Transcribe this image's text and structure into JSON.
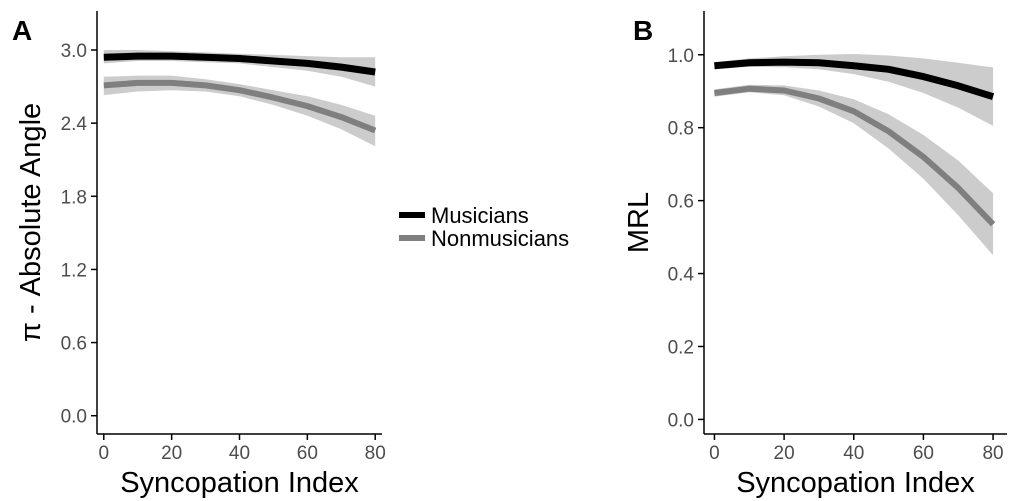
{
  "legend": {
    "placement": "center",
    "entries": [
      {
        "label": "Musicians",
        "color": "#000000"
      },
      {
        "label": "Nonmusicians",
        "color": "#7f7f7f"
      }
    ]
  },
  "colors": {
    "ribbon": "#cccccc",
    "axis": "#000000"
  },
  "chart_data": [
    {
      "type": "line",
      "panel_label": "A",
      "xlabel": "Syncopation Index",
      "ylabel": "π - Absolute Angle",
      "xlim": [
        -2,
        82
      ],
      "ylim": [
        -0.15,
        3.32
      ],
      "xticks": [
        0,
        20,
        40,
        60,
        80
      ],
      "xtick_labels": [
        "0",
        "20",
        "40",
        "60",
        "80"
      ],
      "yticks": [
        0,
        0.6,
        1.2,
        1.8,
        2.4,
        3.0
      ],
      "ytick_labels": [
        "0.0",
        "0.6",
        "1.2",
        "1.8",
        "2.4",
        "3.0"
      ],
      "grid": false,
      "x": [
        0,
        10,
        20,
        30,
        40,
        50,
        60,
        70,
        80
      ],
      "series": [
        {
          "name": "Musicians",
          "values": [
            2.94,
            2.95,
            2.95,
            2.94,
            2.93,
            2.91,
            2.89,
            2.86,
            2.82
          ],
          "lower": [
            2.89,
            2.91,
            2.91,
            2.9,
            2.89,
            2.86,
            2.83,
            2.78,
            2.7
          ],
          "upper": [
            3.0,
            3.0,
            2.99,
            2.98,
            2.97,
            2.96,
            2.95,
            2.94,
            2.94
          ]
        },
        {
          "name": "Nonmusicians",
          "values": [
            2.71,
            2.73,
            2.73,
            2.71,
            2.67,
            2.61,
            2.54,
            2.45,
            2.34
          ],
          "lower": [
            2.63,
            2.66,
            2.67,
            2.66,
            2.62,
            2.55,
            2.46,
            2.35,
            2.21
          ],
          "upper": [
            2.78,
            2.79,
            2.79,
            2.76,
            2.72,
            2.67,
            2.62,
            2.55,
            2.46
          ]
        }
      ]
    },
    {
      "type": "line",
      "panel_label": "B",
      "xlabel": "Syncopation Index",
      "ylabel": "MRL",
      "xlim": [
        -3,
        84
      ],
      "ylim": [
        -0.04,
        1.12
      ],
      "xticks": [
        0,
        20,
        40,
        60,
        80
      ],
      "xtick_labels": [
        "0",
        "20",
        "40",
        "60",
        "80"
      ],
      "yticks": [
        0,
        0.2,
        0.4,
        0.6,
        0.8,
        1.0
      ],
      "ytick_labels": [
        "0.0",
        "0.2",
        "0.4",
        "0.6",
        "0.8",
        "1.0"
      ],
      "grid": false,
      "x": [
        0,
        10,
        20,
        30,
        40,
        50,
        60,
        70,
        80
      ],
      "series": [
        {
          "name": "Musicians",
          "values": [
            0.97,
            0.978,
            0.98,
            0.978,
            0.97,
            0.96,
            0.94,
            0.915,
            0.885
          ],
          "lower": [
            0.96,
            0.967,
            0.966,
            0.96,
            0.947,
            0.926,
            0.895,
            0.855,
            0.805
          ],
          "upper": [
            0.98,
            0.99,
            0.996,
            1.0,
            1.002,
            0.998,
            0.99,
            0.978,
            0.965
          ]
        },
        {
          "name": "Nonmusicians",
          "values": [
            0.895,
            0.907,
            0.902,
            0.88,
            0.845,
            0.79,
            0.72,
            0.635,
            0.535
          ],
          "lower": [
            0.885,
            0.897,
            0.889,
            0.858,
            0.812,
            0.743,
            0.66,
            0.56,
            0.45
          ],
          "upper": [
            0.905,
            0.918,
            0.916,
            0.902,
            0.878,
            0.837,
            0.78,
            0.71,
            0.62
          ]
        }
      ]
    }
  ]
}
